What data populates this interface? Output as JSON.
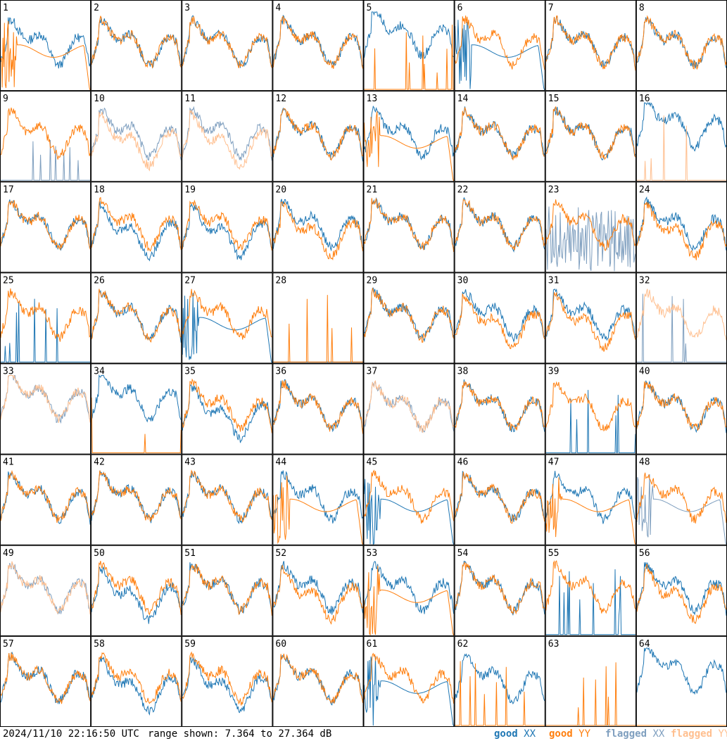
{
  "colors": {
    "good_xx": "#1f77b4",
    "good_yy": "#ff7f0e",
    "flagged_xx": "#7f9fbf",
    "flagged_yy": "#ffbf8f",
    "grid_line": "#000000",
    "background": "#ffffff"
  },
  "footer": {
    "timestamp": "2024/11/10 22:16:50 UTC",
    "range_text": "range shown: 7.364 to 27.364 dB"
  },
  "legend": [
    {
      "label": "good",
      "swatch": "XX",
      "key": "good_xx"
    },
    {
      "label": "good",
      "swatch": "YY",
      "key": "good_yy"
    },
    {
      "label": "flagged",
      "swatch": "XX",
      "key": "flagged_xx"
    },
    {
      "label": "flagged",
      "swatch": "YY",
      "key": "flagged_yy"
    }
  ],
  "chart_data": {
    "type": "line",
    "layout": "8x8 small multiples of per-antenna bandpass spectra",
    "x_axis": "frequency channel (unlabeled)",
    "y_range_db": [
      7.364,
      27.364
    ],
    "series_keys": [
      "xx",
      "yy"
    ],
    "panels": [
      {
        "id": "1",
        "xx": "good_normal",
        "yy": "good_dropout"
      },
      {
        "id": "2",
        "xx": "good_normal",
        "yy": "good_normal"
      },
      {
        "id": "3",
        "xx": "good_normal",
        "yy": "good_normal"
      },
      {
        "id": "4",
        "xx": "good_normal",
        "yy": "good_normal"
      },
      {
        "id": "5",
        "xx": "good_high",
        "yy": "good_spikes"
      },
      {
        "id": "6",
        "xx": "good_dropout",
        "yy": "good_normal"
      },
      {
        "id": "7",
        "xx": "good_normal",
        "yy": "good_normal"
      },
      {
        "id": "8",
        "xx": "good_normal",
        "yy": "good_normal"
      },
      {
        "id": "9",
        "xx": "flagged_spikes",
        "yy": "good_normal"
      },
      {
        "id": "10",
        "xx": "flagged_normal",
        "yy": "flagged_low"
      },
      {
        "id": "11",
        "xx": "flagged_normal",
        "yy": "flagged_low"
      },
      {
        "id": "12",
        "xx": "good_normal",
        "yy": "good_normal"
      },
      {
        "id": "13",
        "xx": "good_normal",
        "yy": "good_dropout"
      },
      {
        "id": "14",
        "xx": "good_normal",
        "yy": "good_normal"
      },
      {
        "id": "15",
        "xx": "good_normal",
        "yy": "good_normal"
      },
      {
        "id": "16",
        "xx": "good_high",
        "yy": "flagged_spikes"
      },
      {
        "id": "17",
        "xx": "good_normal",
        "yy": "good_normal"
      },
      {
        "id": "18",
        "xx": "good_low",
        "yy": "good_normal"
      },
      {
        "id": "19",
        "xx": "good_low",
        "yy": "good_normal"
      },
      {
        "id": "20",
        "xx": "good_normal",
        "yy": "good_low"
      },
      {
        "id": "21",
        "xx": "good_normal",
        "yy": "good_normal"
      },
      {
        "id": "22",
        "xx": "good_normal",
        "yy": "good_normal"
      },
      {
        "id": "23",
        "xx": "flagged_noise",
        "yy": "good_normal"
      },
      {
        "id": "24",
        "xx": "good_normal",
        "yy": "good_low"
      },
      {
        "id": "25",
        "xx": "good_spikes",
        "yy": "good_normal"
      },
      {
        "id": "26",
        "xx": "good_normal",
        "yy": "good_normal"
      },
      {
        "id": "27",
        "xx": "good_dropout",
        "yy": "good_normal"
      },
      {
        "id": "28",
        "xx": "good_flat",
        "yy": "good_spikes"
      },
      {
        "id": "29",
        "xx": "good_normal",
        "yy": "good_normal"
      },
      {
        "id": "30",
        "xx": "good_normal",
        "yy": "good_low"
      },
      {
        "id": "31",
        "xx": "good_normal",
        "yy": "good_low"
      },
      {
        "id": "32",
        "xx": "flagged_spikes",
        "yy": "flagged_normal"
      },
      {
        "id": "33",
        "xx": "flagged_high",
        "yy": "flagged_high"
      },
      {
        "id": "34",
        "xx": "good_high",
        "yy": "good_spikes"
      },
      {
        "id": "35",
        "xx": "good_low",
        "yy": "good_normal"
      },
      {
        "id": "36",
        "xx": "good_normal",
        "yy": "good_normal"
      },
      {
        "id": "37",
        "xx": "flagged_normal",
        "yy": "flagged_normal"
      },
      {
        "id": "38",
        "xx": "good_normal",
        "yy": "good_normal"
      },
      {
        "id": "39",
        "xx": "good_spikes",
        "yy": "good_normal"
      },
      {
        "id": "40",
        "xx": "good_normal",
        "yy": "good_normal"
      },
      {
        "id": "41",
        "xx": "good_normal",
        "yy": "good_normal"
      },
      {
        "id": "42",
        "xx": "good_normal",
        "yy": "good_normal"
      },
      {
        "id": "43",
        "xx": "good_normal",
        "yy": "good_normal"
      },
      {
        "id": "44",
        "xx": "good_normal",
        "yy": "good_dropout"
      },
      {
        "id": "45",
        "xx": "good_dropout",
        "yy": "good_normal"
      },
      {
        "id": "46",
        "xx": "good_normal",
        "yy": "good_normal"
      },
      {
        "id": "47",
        "xx": "good_normal",
        "yy": "good_dropout"
      },
      {
        "id": "48",
        "xx": "flagged_dropout",
        "yy": "good_normal"
      },
      {
        "id": "49",
        "xx": "flagged_normal",
        "yy": "flagged_normal"
      },
      {
        "id": "50",
        "xx": "good_low",
        "yy": "good_normal"
      },
      {
        "id": "51",
        "xx": "good_normal",
        "yy": "good_normal"
      },
      {
        "id": "52",
        "xx": "good_normal",
        "yy": "good_low"
      },
      {
        "id": "53",
        "xx": "good_normal",
        "yy": "good_dropout"
      },
      {
        "id": "54",
        "xx": "good_normal",
        "yy": "good_normal"
      },
      {
        "id": "55",
        "xx": "good_spikes",
        "yy": "good_normal"
      },
      {
        "id": "56",
        "xx": "good_normal",
        "yy": "good_low"
      },
      {
        "id": "57",
        "xx": "good_normal",
        "yy": "good_normal"
      },
      {
        "id": "58",
        "xx": "good_low",
        "yy": "good_normal"
      },
      {
        "id": "59",
        "xx": "good_low",
        "yy": "good_normal"
      },
      {
        "id": "60",
        "xx": "good_normal",
        "yy": "good_normal"
      },
      {
        "id": "61",
        "xx": "good_dropout",
        "yy": "good_normal"
      },
      {
        "id": "62",
        "xx": "good_normal",
        "yy": "good_spikes"
      },
      {
        "id": "63",
        "xx": "good_flat",
        "yy": "good_spikes"
      },
      {
        "id": "64",
        "xx": "good_high",
        "yy": "good_flat"
      }
    ]
  }
}
